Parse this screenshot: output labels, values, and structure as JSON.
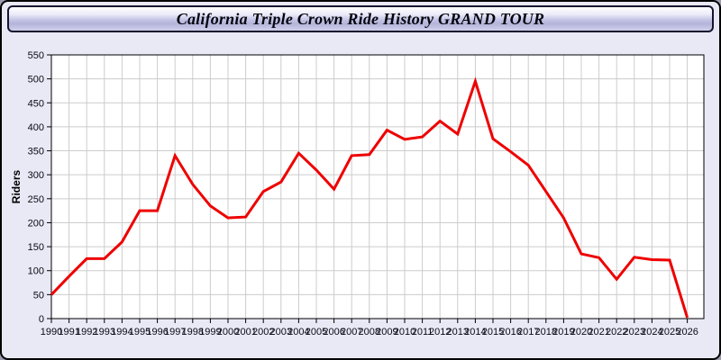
{
  "window": {
    "title": "California Triple Crown Ride History GRAND TOUR"
  },
  "colors": {
    "frame_background": "#e9e9f6",
    "titlebar_gradient_top": "#fdfdff",
    "titlebar_gradient_mid": "#b4b4da",
    "plot_background": "#ffffff",
    "grid": "#cccccc",
    "axis": "#000000",
    "line": "#ee0000"
  },
  "chart_data": {
    "type": "line",
    "title": "California Triple Crown Ride History GRAND TOUR",
    "xlabel": "",
    "ylabel": "Riders",
    "ylim": [
      0,
      550
    ],
    "ytick_step": 50,
    "grid": true,
    "legend": "none",
    "x": [
      1990,
      1991,
      1992,
      1993,
      1994,
      1995,
      1996,
      1997,
      1998,
      1999,
      2000,
      2001,
      2002,
      2003,
      2004,
      2005,
      2006,
      2007,
      2008,
      2009,
      2010,
      2011,
      2012,
      2013,
      2014,
      2015,
      2016,
      2017,
      2018,
      2019,
      2020,
      2021,
      2022,
      2023,
      2024,
      2025,
      2026
    ],
    "series": [
      {
        "name": "Riders",
        "color": "#ee0000",
        "values": [
          50,
          88,
          125,
          125,
          160,
          225,
          225,
          340,
          280,
          235,
          210,
          212,
          265,
          285,
          345,
          310,
          270,
          340,
          342,
          393,
          374,
          379,
          412,
          385,
          495,
          375,
          348,
          320,
          265,
          210,
          135,
          127,
          82,
          128,
          123,
          122,
          2
        ]
      }
    ]
  }
}
